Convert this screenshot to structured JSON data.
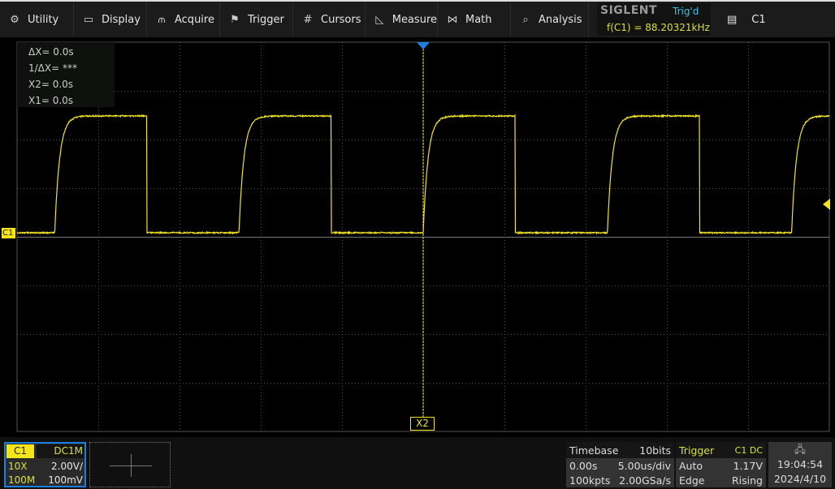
{
  "menu": [
    {
      "label": "Utility",
      "icon": "gear-icon"
    },
    {
      "label": "Display",
      "icon": "monitor-icon"
    },
    {
      "label": "Acquire",
      "icon": "acquire-icon"
    },
    {
      "label": "Trigger",
      "icon": "flag-icon"
    },
    {
      "label": "Cursors",
      "icon": "cursors-icon"
    },
    {
      "label": "Measure",
      "icon": "ruler-icon"
    },
    {
      "label": "Math",
      "icon": "math-icon"
    },
    {
      "label": "Analysis",
      "icon": "analysis-icon"
    }
  ],
  "brand": {
    "logo": "SIGLENT",
    "status": "Trig'd",
    "frequency": "f(C1) = 88.20321kHz"
  },
  "channel_select": {
    "label": "C1",
    "icon": "clipboard-icon"
  },
  "cursors": {
    "dx": "ΔX= 0.0s",
    "inv_dx": "1/ΔX= ***",
    "x2": "X2= 0.0s",
    "x1": "X1= 0.0s",
    "x2_label": "X2"
  },
  "channel_marker": "C1",
  "colors": {
    "trace": "#f4e51a",
    "accent": "#1a7fe0",
    "trig_status": "#2ec7e6"
  },
  "waveform": {
    "type": "square",
    "period_us": 11.34,
    "high_V": 4.8,
    "low_V": 0.0,
    "volts_per_div": 2.0,
    "time_per_div_us": 5.0,
    "trigger_level_V": 1.17
  },
  "c1": {
    "name": "C1",
    "coupling": "DC1M",
    "probe": "10X",
    "scale": "2.00V/",
    "bandwidth": "100M",
    "offset": "100mV"
  },
  "timebase": {
    "title": "Timebase",
    "bits": "10bits",
    "delay": "0.00s",
    "scale": "5.00us/div",
    "points": "100kpts",
    "rate": "2.00GSa/s"
  },
  "trigger": {
    "title": "Trigger",
    "source": "C1 DC",
    "mode": "Auto",
    "level": "1.17V",
    "type": "Edge",
    "slope": "Rising"
  },
  "clock": {
    "time": "19:04:54",
    "date": "2024/4/10",
    "icon": "network-icon"
  }
}
